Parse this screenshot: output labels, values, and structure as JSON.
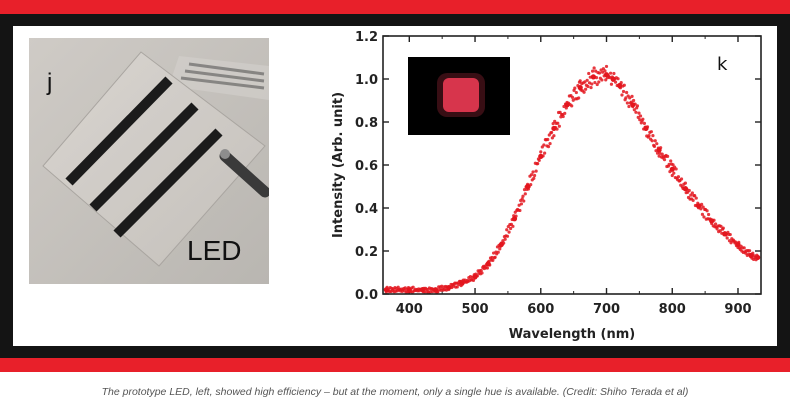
{
  "photo_panel": {
    "label": "j",
    "led_text": "LED"
  },
  "chart_data": {
    "type": "scatter",
    "panel_label": "k",
    "xlabel": "Wavelength (nm)",
    "ylabel": "Intensity (Arb. unit)",
    "xlim": [
      360,
      935
    ],
    "ylim": [
      0.0,
      1.2
    ],
    "xticks": [
      400,
      500,
      600,
      700,
      800,
      900
    ],
    "yticks": [
      "0.0",
      "0.2",
      "0.4",
      "0.6",
      "0.8",
      "1.0",
      "1.2"
    ],
    "series": [
      {
        "color": "#e3161e",
        "x": [
          365,
          400,
          420,
          440,
          460,
          480,
          500,
          520,
          540,
          560,
          580,
          600,
          620,
          640,
          660,
          680,
          700,
          710,
          720,
          740,
          760,
          780,
          800,
          820,
          840,
          860,
          880,
          900,
          920,
          930
        ],
        "y": [
          0.02,
          0.02,
          0.02,
          0.02,
          0.03,
          0.05,
          0.08,
          0.14,
          0.23,
          0.35,
          0.5,
          0.64,
          0.77,
          0.88,
          0.96,
          1.01,
          1.02,
          1.0,
          0.97,
          0.88,
          0.77,
          0.67,
          0.58,
          0.49,
          0.41,
          0.34,
          0.28,
          0.23,
          0.18,
          0.17
        ]
      }
    ],
    "inset": {
      "description_color": "#e0384f"
    },
    "grid": false
  },
  "caption": "The prototype LED, left, showed high efficiency – but at the moment, only a single hue is available. (Credit: Shiho Terada et al)"
}
